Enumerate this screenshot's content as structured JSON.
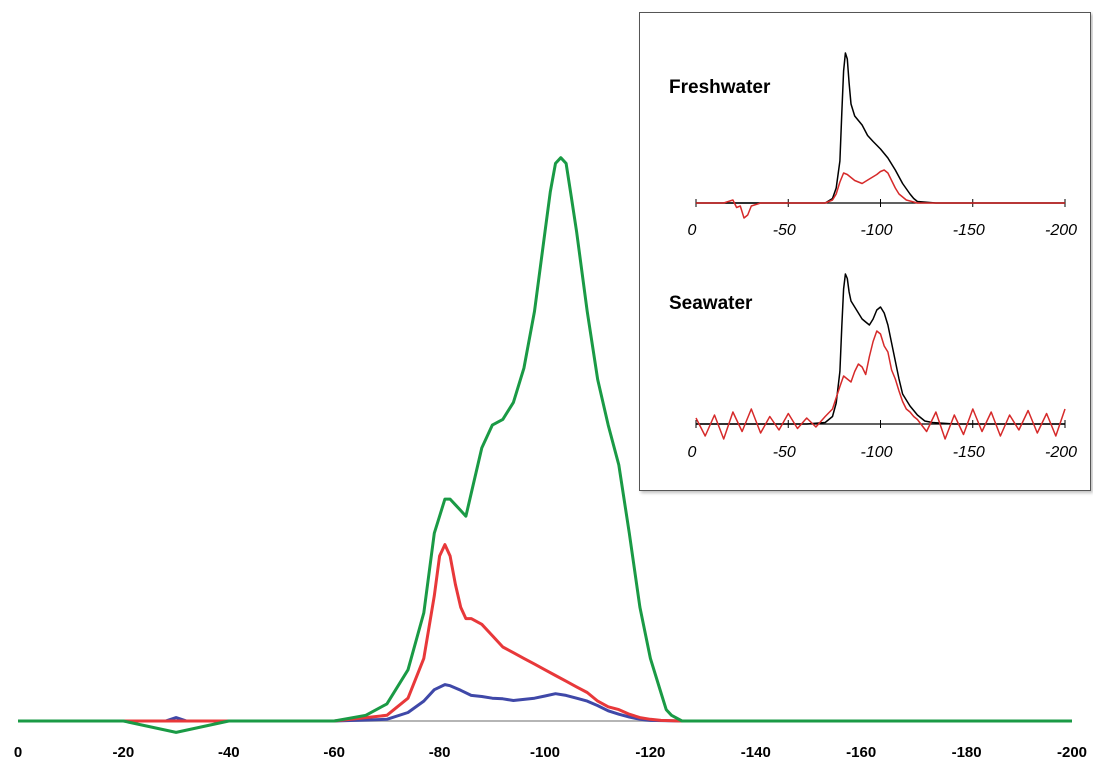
{
  "chart_data": [
    {
      "type": "line",
      "title": "",
      "xlabel": "",
      "ylabel": "",
      "xlim": [
        0,
        -200
      ],
      "ylim": [
        0,
        1
      ],
      "grid": false,
      "x_ticks": [
        "0",
        "-20",
        "-40",
        "-60",
        "-80",
        "-100",
        "-120",
        "-140",
        "-160",
        "-180",
        "-200"
      ],
      "series": [
        {
          "color": "#1a9a45",
          "x": [
            0,
            -10,
            -20,
            -30,
            -40,
            -50,
            -60,
            -66,
            -70,
            -74,
            -77,
            -79,
            -81,
            -82,
            -83,
            -84,
            -85,
            -86,
            -88,
            -90,
            -92,
            -94,
            -96,
            -98,
            -100,
            -101,
            -102,
            -103,
            -104,
            -105,
            -106,
            -108,
            -110,
            -112,
            -114,
            -116,
            -118,
            -120,
            -122,
            -123,
            -124,
            -126,
            -130,
            -140,
            -150,
            -160,
            -170,
            -180,
            -190,
            -200
          ],
          "y": [
            0.0,
            0.0,
            0.0,
            -0.02,
            0.0,
            0.0,
            0.0,
            0.01,
            0.03,
            0.09,
            0.19,
            0.33,
            0.39,
            0.39,
            0.38,
            0.37,
            0.36,
            0.4,
            0.48,
            0.52,
            0.53,
            0.56,
            0.62,
            0.72,
            0.86,
            0.93,
            0.98,
            0.99,
            0.98,
            0.92,
            0.86,
            0.72,
            0.6,
            0.52,
            0.45,
            0.33,
            0.2,
            0.11,
            0.05,
            0.02,
            0.01,
            0.0,
            0.0,
            0.0,
            0.0,
            0.0,
            0.0,
            0.0,
            0.0,
            0.0
          ]
        },
        {
          "color": "#e8383a",
          "x": [
            0,
            -20,
            -40,
            -60,
            -70,
            -74,
            -77,
            -79,
            -80,
            -81,
            -82,
            -83,
            -84,
            -85,
            -86,
            -88,
            -90,
            -92,
            -94,
            -96,
            -98,
            -100,
            -102,
            -104,
            -106,
            -108,
            -110,
            -112,
            -114,
            -116,
            -118,
            -120,
            -122,
            -126,
            -140,
            -160,
            -180,
            -200
          ],
          "y": [
            0.0,
            0.0,
            0.0,
            0.0,
            0.01,
            0.04,
            0.11,
            0.22,
            0.29,
            0.31,
            0.29,
            0.24,
            0.2,
            0.18,
            0.18,
            0.17,
            0.15,
            0.13,
            0.12,
            0.11,
            0.1,
            0.09,
            0.08,
            0.07,
            0.06,
            0.05,
            0.035,
            0.025,
            0.02,
            0.012,
            0.006,
            0.003,
            0.001,
            0.0,
            0.0,
            0.0,
            0.0,
            0.0
          ]
        },
        {
          "color": "#3f48a8",
          "x": [
            0,
            -20,
            -28,
            -30,
            -32,
            -40,
            -60,
            -70,
            -74,
            -77,
            -79,
            -81,
            -82,
            -84,
            -86,
            -88,
            -90,
            -92,
            -94,
            -96,
            -98,
            -100,
            -102,
            -104,
            -106,
            -108,
            -110,
            -112,
            -114,
            -116,
            -118,
            -120,
            -126,
            -140,
            -160,
            -180,
            -200
          ],
          "y": [
            0.0,
            0.0,
            0.0,
            0.006,
            0.0,
            0.0,
            0.0,
            0.003,
            0.015,
            0.035,
            0.055,
            0.064,
            0.062,
            0.054,
            0.045,
            0.043,
            0.04,
            0.039,
            0.036,
            0.038,
            0.04,
            0.044,
            0.048,
            0.045,
            0.04,
            0.035,
            0.027,
            0.018,
            0.012,
            0.007,
            0.003,
            0.001,
            0.0,
            0.0,
            0.0,
            0.0,
            0.0
          ]
        }
      ]
    },
    {
      "type": "line",
      "title": "Freshwater",
      "xlim": [
        0,
        -200
      ],
      "ylim": [
        0,
        1
      ],
      "x_ticks": [
        "0",
        "-50",
        "-100",
        "-150",
        "-200"
      ],
      "series": [
        {
          "color": "#000000",
          "x": [
            0,
            -40,
            -60,
            -70,
            -74,
            -76,
            -78,
            -79,
            -80,
            -81,
            -82,
            -83,
            -84,
            -86,
            -88,
            -90,
            -93,
            -96,
            -100,
            -104,
            -108,
            -112,
            -116,
            -118,
            -120,
            -130,
            -160,
            -200
          ],
          "y": [
            0.0,
            0.0,
            0.0,
            0.0,
            0.03,
            0.1,
            0.28,
            0.6,
            0.88,
            1.0,
            0.96,
            0.8,
            0.66,
            0.58,
            0.55,
            0.52,
            0.45,
            0.41,
            0.36,
            0.3,
            0.22,
            0.13,
            0.06,
            0.03,
            0.01,
            0.0,
            0.0,
            0.0
          ]
        },
        {
          "color": "#d62a2a",
          "x": [
            0,
            -15,
            -20,
            -22,
            -24,
            -26,
            -28,
            -30,
            -35,
            -40,
            -60,
            -70,
            -74,
            -76,
            -78,
            -80,
            -82,
            -84,
            -86,
            -88,
            -90,
            -94,
            -98,
            -100,
            -102,
            -104,
            -106,
            -108,
            -110,
            -114,
            -120,
            -140,
            -170,
            -200
          ],
          "y": [
            0.0,
            0.0,
            0.02,
            -0.03,
            -0.02,
            -0.1,
            -0.08,
            -0.02,
            0.0,
            0.0,
            0.0,
            0.0,
            0.02,
            0.06,
            0.14,
            0.2,
            0.19,
            0.17,
            0.15,
            0.14,
            0.13,
            0.16,
            0.19,
            0.21,
            0.22,
            0.2,
            0.15,
            0.1,
            0.06,
            0.02,
            0.0,
            0.0,
            0.0,
            0.0
          ]
        }
      ]
    },
    {
      "type": "line",
      "title": "Seawater",
      "xlim": [
        0,
        -200
      ],
      "ylim": [
        0,
        1
      ],
      "x_ticks": [
        "0",
        "-50",
        "-100",
        "-150",
        "-200"
      ],
      "series": [
        {
          "color": "#000000",
          "x": [
            0,
            -40,
            -60,
            -70,
            -74,
            -76,
            -78,
            -79,
            -80,
            -81,
            -82,
            -83,
            -84,
            -86,
            -88,
            -90,
            -92,
            -94,
            -96,
            -98,
            -100,
            -102,
            -104,
            -106,
            -108,
            -110,
            -112,
            -116,
            -120,
            -124,
            -128,
            -140,
            -170,
            -200
          ],
          "y": [
            0.0,
            0.0,
            0.0,
            0.01,
            0.05,
            0.14,
            0.35,
            0.65,
            0.9,
            1.0,
            0.97,
            0.88,
            0.82,
            0.78,
            0.74,
            0.7,
            0.68,
            0.66,
            0.7,
            0.76,
            0.78,
            0.74,
            0.66,
            0.54,
            0.42,
            0.3,
            0.2,
            0.12,
            0.06,
            0.02,
            0.01,
            0.0,
            0.0,
            0.0
          ]
        },
        {
          "color": "#d62a2a",
          "x": [
            0,
            -5,
            -10,
            -15,
            -20,
            -25,
            -30,
            -35,
            -40,
            -45,
            -50,
            -55,
            -60,
            -65,
            -70,
            -74,
            -78,
            -80,
            -82,
            -84,
            -86,
            -88,
            -90,
            -92,
            -94,
            -96,
            -98,
            -100,
            -102,
            -104,
            -106,
            -108,
            -110,
            -112,
            -114,
            -116,
            -118,
            -120,
            -125,
            -130,
            -135,
            -140,
            -145,
            -150,
            -155,
            -160,
            -165,
            -170,
            -175,
            -180,
            -185,
            -190,
            -195,
            -200
          ],
          "y": [
            0.04,
            -0.08,
            0.06,
            -0.1,
            0.08,
            -0.05,
            0.1,
            -0.06,
            0.05,
            -0.04,
            0.07,
            -0.03,
            0.04,
            -0.02,
            0.05,
            0.1,
            0.25,
            0.32,
            0.3,
            0.28,
            0.35,
            0.4,
            0.38,
            0.33,
            0.45,
            0.55,
            0.62,
            0.6,
            0.52,
            0.48,
            0.36,
            0.3,
            0.22,
            0.15,
            0.1,
            0.08,
            0.05,
            0.03,
            -0.05,
            0.08,
            -0.1,
            0.06,
            -0.07,
            0.1,
            -0.05,
            0.08,
            -0.08,
            0.06,
            -0.04,
            0.09,
            -0.06,
            0.07,
            -0.08,
            0.1
          ]
        }
      ]
    }
  ]
}
